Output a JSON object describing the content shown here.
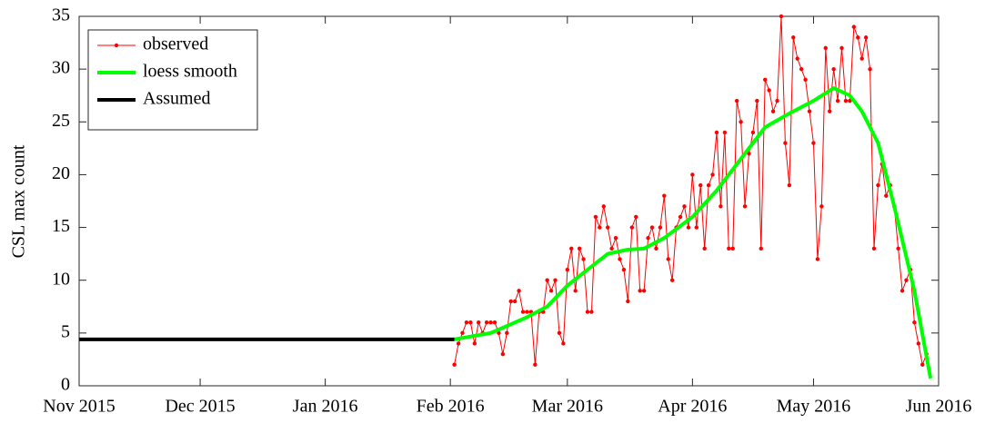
{
  "chart_data": {
    "type": "line",
    "ylabel": "CSL max count",
    "xlim": [
      0,
      213
    ],
    "xticks": [
      {
        "value": 0,
        "label": "Nov 2015"
      },
      {
        "value": 30,
        "label": "Dec 2015"
      },
      {
        "value": 61,
        "label": "Jan 2016"
      },
      {
        "value": 92,
        "label": "Feb 2016"
      },
      {
        "value": 121,
        "label": "Mar 2016"
      },
      {
        "value": 152,
        "label": "Apr 2016"
      },
      {
        "value": 182,
        "label": "May 2016"
      },
      {
        "value": 213,
        "label": "Jun 2016"
      }
    ],
    "ylim": [
      0,
      35
    ],
    "yticks": [
      0,
      5,
      10,
      15,
      20,
      25,
      30,
      35
    ],
    "grid": false,
    "legend": "upper left",
    "series": [
      {
        "name": "observed",
        "color": "#ff0000",
        "linewidth": 1,
        "marker": true,
        "x": [
          93,
          94,
          95,
          96,
          97,
          98,
          99,
          100,
          101,
          102,
          103,
          104,
          105,
          106,
          107,
          108,
          109,
          110,
          111,
          112,
          113,
          114,
          115,
          116,
          117,
          118,
          119,
          120,
          121,
          122,
          123,
          124,
          125,
          126,
          127,
          128,
          129,
          130,
          131,
          132,
          133,
          134,
          135,
          136,
          137,
          138,
          139,
          140,
          141,
          142,
          143,
          144,
          145,
          146,
          147,
          148,
          149,
          150,
          151,
          152,
          153,
          154,
          155,
          156,
          157,
          158,
          159,
          160,
          161,
          162,
          163,
          164,
          165,
          166,
          167,
          168,
          169,
          170,
          171,
          172,
          173,
          174,
          175,
          176,
          177,
          178,
          179,
          180,
          181,
          182,
          183,
          184,
          185,
          186,
          187,
          188,
          189,
          190,
          191,
          192,
          193,
          194,
          195,
          196,
          197,
          198,
          199,
          200,
          201,
          202,
          203,
          204,
          205,
          206,
          207,
          208,
          209,
          210
        ],
        "values": [
          2,
          4,
          5,
          6,
          6,
          4,
          6,
          5,
          6,
          6,
          6,
          5,
          3,
          5,
          8,
          8,
          9,
          7,
          7,
          7,
          2,
          7,
          7,
          10,
          9,
          10,
          5,
          4,
          11,
          13,
          9,
          13,
          12,
          7,
          7,
          16,
          15,
          17,
          15,
          13,
          14,
          12,
          11,
          8,
          15,
          16,
          9,
          9,
          14,
          15,
          13,
          15,
          18,
          12,
          10,
          15,
          16,
          17,
          15,
          20,
          15,
          19,
          13,
          19,
          20,
          24,
          17,
          24,
          13,
          13,
          27,
          25,
          17,
          22,
          24,
          27,
          13,
          29,
          28,
          26,
          27,
          35,
          23,
          19,
          33,
          31,
          30,
          29,
          26,
          23,
          12,
          17,
          32,
          26,
          30,
          27,
          32,
          27,
          27,
          34,
          33,
          31,
          33,
          30,
          13,
          19,
          21,
          18,
          19,
          17,
          13,
          9,
          10,
          11,
          6,
          4,
          2,
          3
        ]
      },
      {
        "name": "loess smooth",
        "color": "#00ff00",
        "linewidth": 4,
        "marker": false,
        "x": [
          93,
          102,
          111,
          116,
          121,
          127,
          131,
          136,
          140,
          145,
          152,
          158,
          165,
          170,
          176,
          182,
          187,
          191,
          194,
          198,
          202,
          207,
          211
        ],
        "values": [
          4.4,
          5,
          6.5,
          7.5,
          9.5,
          11.3,
          12.5,
          12.9,
          13,
          14,
          16,
          18.5,
          22,
          24.5,
          25.8,
          27,
          28.2,
          27.5,
          26,
          23,
          17,
          9,
          0.7
        ]
      },
      {
        "name": "Assumed",
        "color": "#000000",
        "linewidth": 4,
        "marker": false,
        "x": [
          0,
          93
        ],
        "values": [
          4.4,
          4.4
        ]
      }
    ]
  }
}
